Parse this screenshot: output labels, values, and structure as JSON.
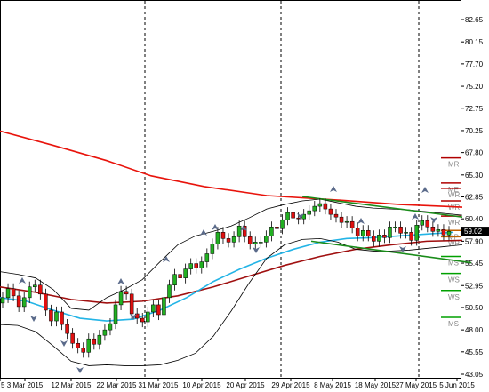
{
  "chart_data": {
    "type": "candlestick",
    "instrument_price_current": "59.02",
    "y_axis": {
      "ticks": [
        "82.65",
        "80.15",
        "77.70",
        "75.20",
        "72.75",
        "70.25",
        "67.80",
        "65.30",
        "62.85",
        "60.40",
        "57.90",
        "55.45",
        "52.95",
        "50.50",
        "48.00",
        "45.55",
        "43.05"
      ],
      "ylim": [
        43.05,
        82.65
      ]
    },
    "x_axis": {
      "ticks": [
        "5",
        "3 Mar 2015",
        "12 Mar 2015",
        "22 Mar 2015",
        "31 Mar 2015",
        "10 Apr 2015",
        "20 Apr 2015",
        "29 Apr 2015",
        "8 May 2015",
        "18 May 2015",
        "27 May 2015",
        "5 Jun 2015"
      ],
      "period_separators": [
        "Mar 2015",
        "Apr 2015",
        "May 2015",
        "Jun 2015"
      ]
    },
    "pivot_levels": [
      {
        "label": "MR",
        "value": 67.2,
        "color": "#b00000"
      },
      {
        "label": "ME",
        "value": 64.4,
        "color": "#b00000"
      },
      {
        "label": "WR",
        "value": 63.8,
        "color": "#b00000"
      },
      {
        "label": "WR",
        "value": 62.4,
        "color": "#b00000"
      },
      {
        "label": "WR",
        "value": 60.7,
        "color": "#b00000"
      },
      {
        "label": "MP",
        "value": 59.1,
        "color": "#c06000"
      },
      {
        "label": "WP",
        "value": 58.4,
        "color": "#c06000"
      },
      {
        "label": "MS",
        "value": 56.2,
        "color": "#00a000"
      },
      {
        "label": "WS",
        "value": 54.3,
        "color": "#00a000"
      },
      {
        "label": "WS",
        "value": 52.4,
        "color": "#00a000"
      },
      {
        "label": "MS",
        "value": 49.4,
        "color": "#00a000"
      }
    ],
    "series": [
      {
        "kind": "ma_long",
        "color": "#e8130b",
        "values": [
          [
            0,
            70.2
          ],
          [
            60,
            68.6
          ],
          [
            120,
            66.9
          ],
          [
            170,
            65.2
          ],
          [
            230,
            64.0
          ],
          [
            300,
            63.0
          ],
          [
            380,
            62.5
          ],
          [
            450,
            62.0
          ],
          [
            520,
            61.7
          ]
        ]
      },
      {
        "kind": "ma_mid",
        "color": "#a01010",
        "values": [
          [
            0,
            52.8
          ],
          [
            40,
            52.2
          ],
          [
            80,
            51.4
          ],
          [
            120,
            51.0
          ],
          [
            160,
            51.2
          ],
          [
            200,
            51.8
          ],
          [
            240,
            52.8
          ],
          [
            280,
            54.0
          ],
          [
            320,
            55.2
          ],
          [
            360,
            56.2
          ],
          [
            400,
            57.0
          ],
          [
            440,
            57.5
          ],
          [
            480,
            57.9
          ],
          [
            520,
            58.0
          ]
        ]
      },
      {
        "kind": "ma_fast",
        "color": "#23b4e6",
        "values": [
          [
            0,
            51.6
          ],
          [
            30,
            51.2
          ],
          [
            60,
            50.2
          ],
          [
            90,
            49.3
          ],
          [
            120,
            49.0
          ],
          [
            150,
            49.2
          ],
          [
            180,
            50.2
          ],
          [
            210,
            51.6
          ],
          [
            240,
            53.4
          ],
          [
            270,
            54.8
          ],
          [
            300,
            56.0
          ],
          [
            330,
            57.0
          ],
          [
            360,
            57.8
          ],
          [
            390,
            58.2
          ],
          [
            420,
            58.3
          ],
          [
            450,
            58.5
          ],
          [
            480,
            58.7
          ],
          [
            510,
            58.9
          ]
        ]
      },
      {
        "kind": "bb_upper",
        "color": "#000000",
        "values": [
          [
            0,
            54.5
          ],
          [
            20,
            54.2
          ],
          [
            40,
            53.8
          ],
          [
            60,
            52.5
          ],
          [
            80,
            50.4
          ],
          [
            100,
            50.2
          ],
          [
            120,
            51.6
          ],
          [
            140,
            52.5
          ],
          [
            160,
            53.6
          ],
          [
            180,
            55.6
          ],
          [
            200,
            57.5
          ],
          [
            220,
            58.5
          ],
          [
            240,
            59.0
          ],
          [
            260,
            59.6
          ],
          [
            280,
            60.5
          ],
          [
            300,
            61.5
          ],
          [
            320,
            62.0
          ],
          [
            340,
            62.4
          ],
          [
            360,
            62.6
          ],
          [
            380,
            62.2
          ],
          [
            400,
            61.8
          ],
          [
            420,
            61.6
          ],
          [
            440,
            61.5
          ],
          [
            460,
            61.4
          ],
          [
            480,
            61.2
          ],
          [
            500,
            61.0
          ],
          [
            520,
            60.8
          ]
        ]
      },
      {
        "kind": "bb_lower",
        "color": "#000000",
        "values": [
          [
            0,
            48.6
          ],
          [
            20,
            48.5
          ],
          [
            40,
            47.8
          ],
          [
            60,
            46.2
          ],
          [
            80,
            44.5
          ],
          [
            100,
            44.0
          ],
          [
            120,
            44.1
          ],
          [
            140,
            44.0
          ],
          [
            160,
            44.0
          ],
          [
            180,
            44.1
          ],
          [
            200,
            44.6
          ],
          [
            220,
            45.4
          ],
          [
            240,
            47.3
          ],
          [
            260,
            50.1
          ],
          [
            280,
            53.2
          ],
          [
            300,
            56.0
          ],
          [
            320,
            57.5
          ],
          [
            340,
            58.1
          ],
          [
            360,
            58.2
          ],
          [
            380,
            57.8
          ],
          [
            400,
            57.0
          ],
          [
            420,
            56.8
          ],
          [
            440,
            56.8
          ],
          [
            460,
            56.9
          ],
          [
            480,
            57.1
          ],
          [
            500,
            57.3
          ],
          [
            520,
            57.5
          ]
        ]
      },
      {
        "kind": "channel_upper",
        "color": "#1a8c1a",
        "values": [
          [
            340,
            62.9
          ],
          [
            520,
            60.6
          ]
        ]
      },
      {
        "kind": "channel_lower",
        "color": "#1a8c1a",
        "values": [
          [
            350,
            57.9
          ],
          [
            530,
            55.5
          ]
        ]
      }
    ]
  }
}
